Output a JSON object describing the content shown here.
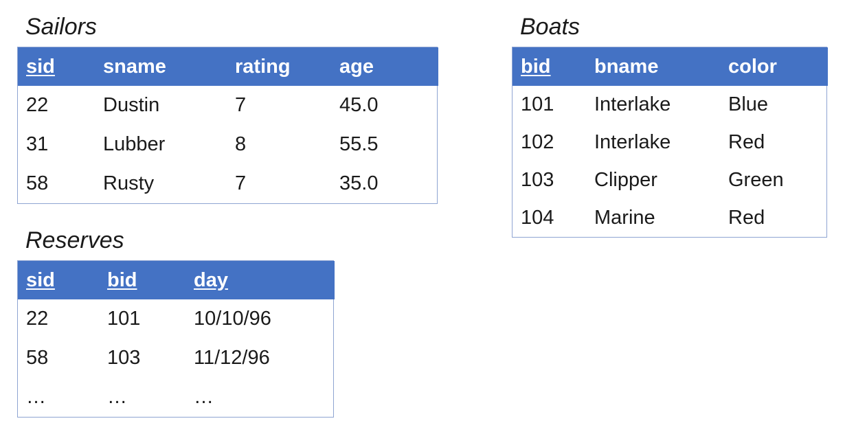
{
  "sailors": {
    "title": "Sailors",
    "columns": [
      {
        "label": "sid",
        "key": true
      },
      {
        "label": "sname",
        "key": false
      },
      {
        "label": "rating",
        "key": false
      },
      {
        "label": "age",
        "key": false
      }
    ],
    "rows": [
      [
        "22",
        "Dustin",
        "7",
        "45.0"
      ],
      [
        "31",
        "Lubber",
        "8",
        "55.5"
      ],
      [
        "58",
        "Rusty",
        "7",
        "35.0"
      ]
    ]
  },
  "boats": {
    "title": "Boats",
    "columns": [
      {
        "label": "bid",
        "key": true
      },
      {
        "label": "bname",
        "key": false
      },
      {
        "label": "color",
        "key": false
      }
    ],
    "rows": [
      [
        "101",
        "Interlake",
        "Blue"
      ],
      [
        "102",
        "Interlake",
        "Red"
      ],
      [
        "103",
        "Clipper",
        "Green"
      ],
      [
        "104",
        "Marine",
        "Red"
      ]
    ]
  },
  "reserves": {
    "title": "Reserves",
    "columns": [
      {
        "label": "sid",
        "key": true
      },
      {
        "label": "bid",
        "key": true
      },
      {
        "label": "day",
        "key": true
      }
    ],
    "rows": [
      [
        "22",
        "101",
        "10/10/96"
      ],
      [
        "58",
        "103",
        "11/12/96"
      ],
      [
        "…",
        "…",
        "…"
      ]
    ]
  },
  "colors": {
    "header_bg": "#4472c4",
    "header_text": "#ffffff",
    "border": "#8ea4d2"
  }
}
